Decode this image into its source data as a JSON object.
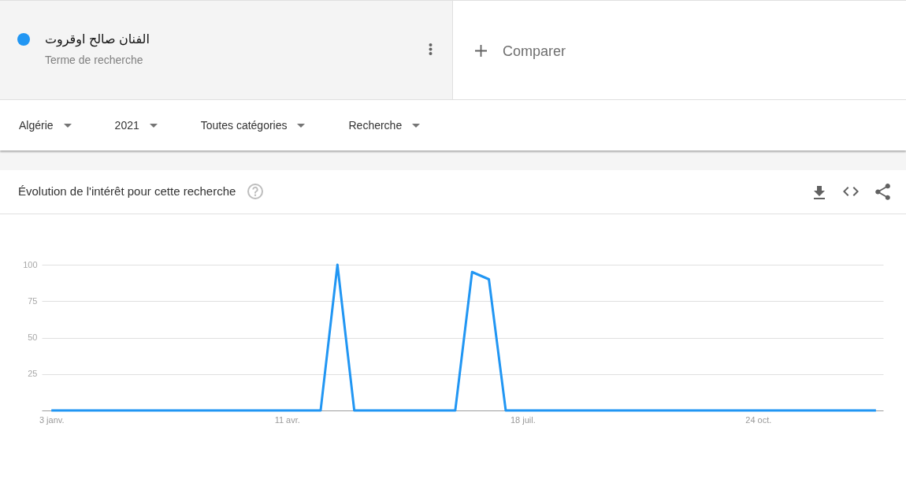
{
  "chart_data": {
    "type": "line",
    "title": "Évolution de l'intérêt pour cette recherche",
    "annotations": [
      "Terme de recherche",
      "Comparer",
      "Algérie",
      "2021",
      "Toutes catégories",
      "Recherche"
    ],
    "x": [
      "2021-01-03",
      "2021-01-10",
      "2021-01-17",
      "2021-01-24",
      "2021-01-31",
      "2021-02-07",
      "2021-02-14",
      "2021-02-21",
      "2021-02-28",
      "2021-03-07",
      "2021-03-14",
      "2021-03-21",
      "2021-03-28",
      "2021-04-04",
      "2021-04-11",
      "2021-04-18",
      "2021-04-25",
      "2021-05-02",
      "2021-05-09",
      "2021-05-16",
      "2021-05-23",
      "2021-05-30",
      "2021-06-06",
      "2021-06-13",
      "2021-06-20",
      "2021-06-27",
      "2021-07-04",
      "2021-07-11",
      "2021-07-18",
      "2021-07-25",
      "2021-08-01",
      "2021-08-08",
      "2021-08-15",
      "2021-08-22",
      "2021-08-29",
      "2021-09-05",
      "2021-09-12",
      "2021-09-19",
      "2021-09-26",
      "2021-10-03",
      "2021-10-10",
      "2021-10-17",
      "2021-10-24",
      "2021-10-31",
      "2021-11-07",
      "2021-11-14",
      "2021-11-21",
      "2021-11-28",
      "2021-12-05",
      "2021-12-12"
    ],
    "series": [
      {
        "name": "الفنان صالح اوقروت",
        "color": "#2196f3",
        "values": [
          0,
          0,
          0,
          0,
          0,
          0,
          0,
          0,
          0,
          0,
          0,
          0,
          0,
          0,
          0,
          0,
          0,
          100,
          0,
          0,
          0,
          0,
          0,
          0,
          0,
          95,
          90,
          0,
          0,
          0,
          0,
          0,
          0,
          0,
          0,
          0,
          0,
          0,
          0,
          0,
          0,
          0,
          0,
          0,
          0,
          0,
          0,
          0,
          0,
          0
        ]
      }
    ],
    "xlim": [
      "2020-12-30",
      "2021-12-15"
    ],
    "xticks": [
      {
        "value": "2021-01-03",
        "label": "3 janv."
      },
      {
        "value": "2021-04-11",
        "label": "11 avr."
      },
      {
        "value": "2021-07-18",
        "label": "18 juil."
      },
      {
        "value": "2021-10-24",
        "label": "24 oct."
      }
    ],
    "ylim": [
      0,
      100
    ],
    "yticks": [
      25,
      50,
      75,
      100
    ],
    "grid": "y",
    "legend": "top left",
    "line_style": "solid"
  }
}
